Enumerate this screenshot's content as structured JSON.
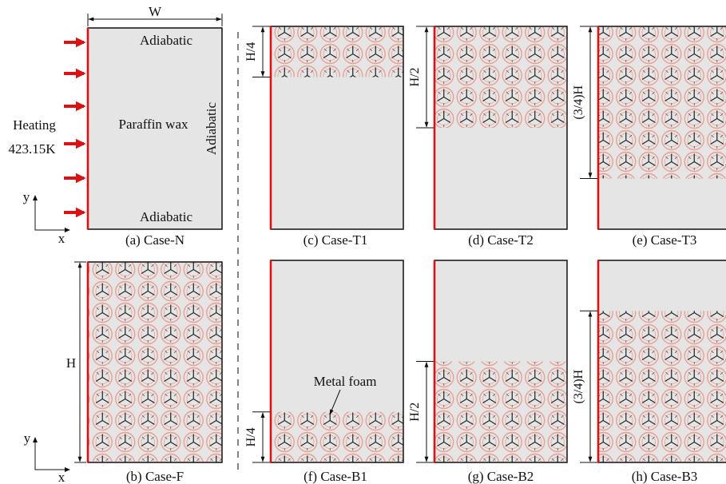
{
  "colors": {
    "domain_fill": "#e5e5e5",
    "domain_stroke": "#111111",
    "heated_wall": "#dd1111",
    "heating_arrow": "#dd1111",
    "foam_pore": "#e8a094",
    "foam_ligament": "#222222"
  },
  "case_n": {
    "width_label": "W",
    "top_boundary": "Adiabatic",
    "bottom_boundary": "Adiabatic",
    "right_boundary": "Adiabatic",
    "material": "Paraffin wax",
    "heating_label": "Heating",
    "heating_temperature": "423.15K",
    "axis_y": "y",
    "axis_x": "x",
    "caption": "(a) Case-N"
  },
  "case_f": {
    "height_label": "H",
    "axis_y": "y",
    "axis_x": "x",
    "caption": "(b) Case-F"
  },
  "case_t1": {
    "dim_label": "H/4",
    "caption": "(c) Case-T1",
    "foam_fraction": 0.25
  },
  "case_t2": {
    "dim_label": "H/2",
    "caption": "(d) Case-T2",
    "foam_fraction": 0.5
  },
  "case_t3": {
    "dim_label": "(3/4)H",
    "caption": "(e) Case-T3",
    "foam_fraction": 0.75
  },
  "case_b1": {
    "dim_label": "H/4",
    "caption": "(f) Case-B1",
    "foam_label": "Metal foam",
    "foam_fraction": 0.25
  },
  "case_b2": {
    "dim_label": "H/2",
    "caption": "(g) Case-B2",
    "foam_fraction": 0.5
  },
  "case_b3": {
    "dim_label": "(3/4)H",
    "caption": "(h) Case-B3",
    "foam_fraction": 0.75
  }
}
